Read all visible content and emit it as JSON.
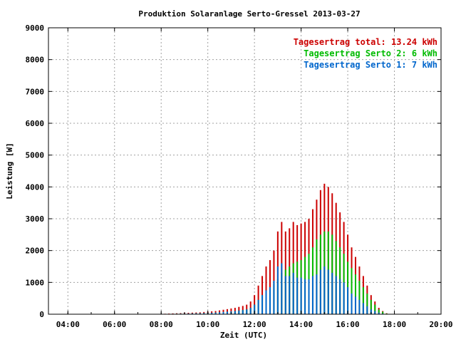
{
  "chart_data": {
    "type": "bar",
    "title": "Produktion Solaranlage Serto-Gressel 2013-03-27",
    "xlabel": "Zeit (UTC)",
    "ylabel": "Leistung [W]",
    "xlim": [
      "03:10",
      "20:00"
    ],
    "ylim": [
      0,
      9000
    ],
    "x_ticks": [
      "04:00",
      "06:00",
      "08:00",
      "10:00",
      "12:00",
      "14:00",
      "16:00",
      "18:00",
      "20:00"
    ],
    "y_ticks": [
      "0",
      "1000",
      "2000",
      "3000",
      "4000",
      "5000",
      "6000",
      "7000",
      "8000",
      "9000"
    ],
    "grid": true,
    "legend_position": "top-right",
    "legend": [
      {
        "label": "Tagesertrag total: 13.24 kWh",
        "color": "#cc0000"
      },
      {
        "label": "Tagesertrag Serto 2: 6 kWh",
        "color": "#00bb00"
      },
      {
        "label": "Tagesertrag Serto 1: 7 kWh",
        "color": "#0066cc"
      }
    ],
    "x": [
      "08:00",
      "08:10",
      "08:20",
      "08:30",
      "08:40",
      "08:50",
      "09:00",
      "09:10",
      "09:20",
      "09:30",
      "09:40",
      "09:50",
      "10:00",
      "10:10",
      "10:20",
      "10:30",
      "10:40",
      "10:50",
      "11:00",
      "11:10",
      "11:20",
      "11:30",
      "11:40",
      "11:50",
      "12:00",
      "12:10",
      "12:20",
      "12:30",
      "12:40",
      "12:50",
      "13:00",
      "13:10",
      "13:20",
      "13:30",
      "13:40",
      "13:50",
      "14:00",
      "14:10",
      "14:20",
      "14:30",
      "14:40",
      "14:50",
      "15:00",
      "15:10",
      "15:20",
      "15:30",
      "15:40",
      "15:50",
      "16:00",
      "16:10",
      "16:20",
      "16:30",
      "16:40",
      "16:50",
      "17:00",
      "17:10",
      "17:20",
      "17:30",
      "17:40"
    ],
    "series": [
      {
        "name": "Tagesertrag total: 13.24 kWh",
        "color": "#cc0000",
        "values": [
          10,
          15,
          20,
          25,
          30,
          35,
          40,
          45,
          50,
          55,
          60,
          70,
          80,
          90,
          100,
          120,
          140,
          160,
          180,
          200,
          230,
          260,
          300,
          400,
          600,
          900,
          1200,
          1500,
          1700,
          2000,
          2600,
          2900,
          2600,
          2700,
          2900,
          2800,
          2850,
          2900,
          3000,
          3300,
          3600,
          3900,
          4100,
          4000,
          3800,
          3500,
          3200,
          2900,
          2500,
          2100,
          1800,
          1500,
          1200,
          900,
          600,
          400,
          200,
          100,
          30
        ]
      },
      {
        "name": "Tagesertrag Serto 2: 6 kWh",
        "color": "#00bb00",
        "values": [
          5,
          7,
          10,
          12,
          15,
          17,
          20,
          22,
          25,
          27,
          30,
          35,
          40,
          45,
          50,
          60,
          70,
          80,
          90,
          100,
          115,
          130,
          150,
          200,
          300,
          450,
          600,
          750,
          850,
          950,
          1100,
          1300,
          1400,
          1500,
          1600,
          1650,
          1700,
          1800,
          1900,
          2100,
          2350,
          2500,
          2600,
          2600,
          2500,
          2300,
          2100,
          1900,
          1650,
          1450,
          1250,
          1050,
          850,
          650,
          450,
          300,
          150,
          80,
          20
        ]
      },
      {
        "name": "Tagesertrag Serto 1: 7 kWh",
        "color": "#0066cc",
        "values": [
          5,
          8,
          10,
          13,
          15,
          18,
          20,
          23,
          25,
          28,
          30,
          35,
          40,
          45,
          50,
          60,
          70,
          80,
          90,
          100,
          115,
          130,
          150,
          200,
          300,
          450,
          600,
          750,
          850,
          1050,
          1500,
          1600,
          1200,
          1200,
          1300,
          1150,
          1150,
          1100,
          1100,
          1200,
          1250,
          1400,
          1500,
          1400,
          1300,
          1200,
          1100,
          1000,
          850,
          650,
          550,
          450,
          350,
          250,
          150,
          100,
          50,
          20,
          10
        ]
      }
    ]
  }
}
